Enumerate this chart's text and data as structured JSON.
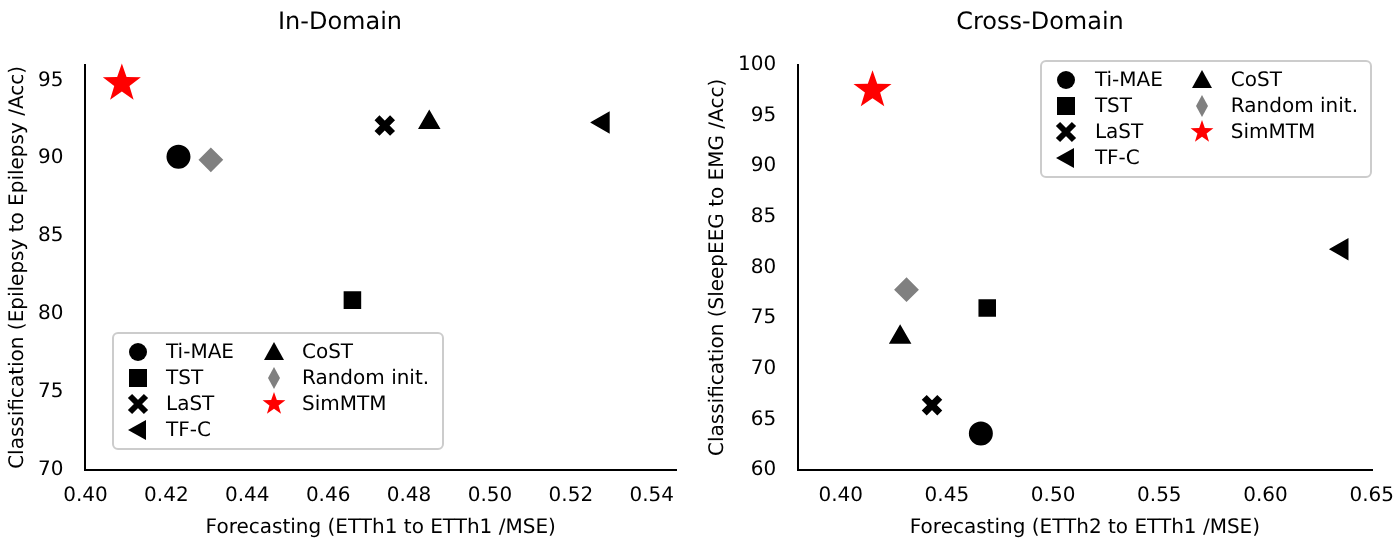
{
  "chart_data": [
    {
      "type": "scatter",
      "title": "In-Domain",
      "xlabel": "Forecasting (ETTh1 to ETTh1 /MSE)",
      "ylabel": "Classification (Epilepsy to Epilepsy /Acc)",
      "xlim": [
        0.4,
        0.546
      ],
      "xticks": [
        {
          "value": 0.4,
          "label": "0.40"
        },
        0.42,
        0.44,
        0.46,
        0.48,
        {
          "value": 0.5,
          "label": "0.50"
        },
        0.52,
        0.54
      ],
      "ylim": [
        70,
        96
      ],
      "yticks": [
        70,
        75,
        80,
        85,
        90,
        95
      ],
      "grid": false,
      "legend": "bottom left",
      "series": [
        {
          "name": "Ti-MAE",
          "color": "#000000",
          "marker": "circle",
          "x": [
            0.423
          ],
          "values": [
            90.1
          ]
        },
        {
          "name": "TST",
          "color": "#000000",
          "marker": "square",
          "x": [
            0.466
          ],
          "values": [
            80.9
          ]
        },
        {
          "name": "LaST",
          "color": "#000000",
          "marker": "cross",
          "x": [
            0.474
          ],
          "values": [
            92.1
          ]
        },
        {
          "name": "TF-C",
          "color": "#000000",
          "marker": "triangle-left",
          "x": [
            0.528
          ],
          "values": [
            92.3
          ]
        },
        {
          "name": "CoST",
          "color": "#000000",
          "marker": "triangle",
          "x": [
            0.485
          ],
          "values": [
            92.3
          ]
        },
        {
          "name": "Random init.",
          "color": "#808080",
          "marker": "diamond",
          "x": [
            0.431
          ],
          "values": [
            89.9
          ]
        },
        {
          "name": "SimMTM",
          "color": "#ff0000",
          "marker": "star",
          "x": [
            0.409
          ],
          "values": [
            94.8
          ]
        }
      ]
    },
    {
      "type": "scatter",
      "title": "Cross-Domain",
      "xlabel": "Forecasting (ETTh2 to ETTh1 /MSE)",
      "ylabel": "Classification (SleepEEG to EMG /Acc)",
      "xlim": [
        0.38,
        0.65
      ],
      "xticks": [
        {
          "value": 0.4,
          "label": "0.40"
        },
        0.45,
        {
          "value": 0.5,
          "label": "0.50"
        },
        0.55,
        {
          "value": 0.6,
          "label": "0.60"
        },
        0.65
      ],
      "ylim": [
        60,
        100
      ],
      "yticks": [
        60,
        65,
        70,
        75,
        80,
        85,
        90,
        95,
        100
      ],
      "grid": false,
      "legend": "top right",
      "series": [
        {
          "name": "Ti-MAE",
          "color": "#000000",
          "marker": "circle",
          "x": [
            0.466
          ],
          "values": [
            63.6
          ]
        },
        {
          "name": "TST",
          "color": "#000000",
          "marker": "square",
          "x": [
            0.469
          ],
          "values": [
            76.0
          ]
        },
        {
          "name": "LaST",
          "color": "#000000",
          "marker": "cross",
          "x": [
            0.443
          ],
          "values": [
            66.4
          ]
        },
        {
          "name": "TF-C",
          "color": "#000000",
          "marker": "triangle-left",
          "x": [
            0.636
          ],
          "values": [
            81.8
          ]
        },
        {
          "name": "CoST",
          "color": "#000000",
          "marker": "triangle",
          "x": [
            0.428
          ],
          "values": [
            73.1
          ]
        },
        {
          "name": "Random init.",
          "color": "#808080",
          "marker": "diamond",
          "x": [
            0.431
          ],
          "values": [
            77.8
          ]
        },
        {
          "name": "SimMTM",
          "color": "#ff0000",
          "marker": "star",
          "x": [
            0.415
          ],
          "values": [
            97.5
          ]
        }
      ]
    }
  ]
}
